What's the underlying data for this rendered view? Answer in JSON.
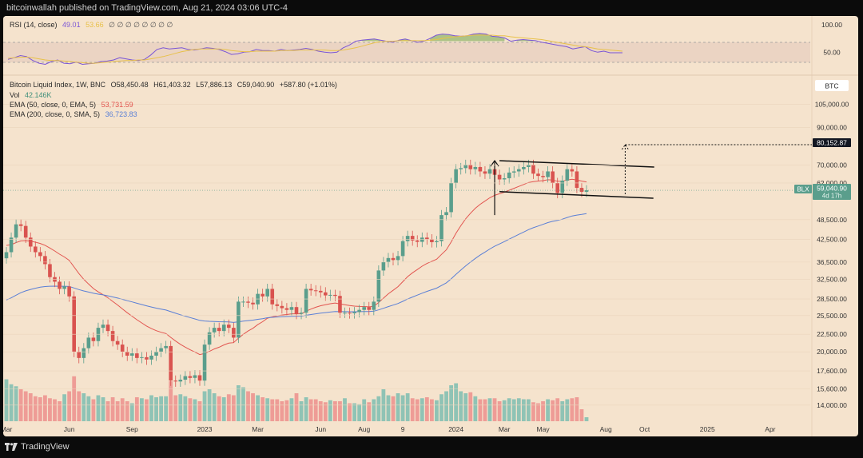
{
  "header": {
    "publish_line": "bitcoinwallah published on TradingView.com, Aug 21, 2024 03:06 UTC-4"
  },
  "rsi_legend": {
    "label": "RSI (14, close)",
    "value": "49.01",
    "value2": "53.66",
    "extras": "∅ ∅ ∅ ∅ ∅ ∅ ∅ ∅"
  },
  "main_legend": {
    "symbol": "Bitcoin Liquid Index, 1W, BNC",
    "open": "O58,450.48",
    "high": "H61,403.32",
    "low": "L57,886.13",
    "close": "C59,040.90",
    "change": "+587.80 (+1.01%)",
    "vol_label": "Vol",
    "vol_value": "42.146K",
    "ema50_label": "EMA (50, close, 0, EMA, 5)",
    "ema50_value": "53,731.59",
    "ema200_label": "EMA (200, close, 0, SMA, 5)",
    "ema200_value": "36,723.83"
  },
  "currency_badge": "BTC",
  "price_labels": {
    "target": "80,152.87",
    "symbol_tag": "BLX",
    "last_price": "59,040.90",
    "countdown": "4d 17h"
  },
  "footer": {
    "brand": "TradingView"
  },
  "colors": {
    "up": "#5a9e8c",
    "down": "#d9534f",
    "vol_up": "#8fc3b5",
    "vol_down": "#ee9c96",
    "ema50": "#e25550",
    "ema200": "#5a7fd6",
    "rsi": "#7a55d6",
    "rsi_ma": "#e8c14a"
  },
  "chart_data": [
    {
      "type": "line",
      "title": "RSI (14, close)",
      "y_ticks": [
        100,
        50
      ],
      "y_tick_labels": [
        "100.00",
        "50.00"
      ],
      "ylim": [
        20,
        110
      ],
      "series": [
        {
          "name": "RSI (14, close)",
          "values": [
            37,
            40,
            44,
            42,
            35,
            30,
            28,
            33,
            36,
            30,
            29,
            32,
            28,
            29,
            30,
            33,
            34,
            36,
            40,
            38,
            36,
            35,
            37,
            45,
            55,
            58,
            56,
            57,
            58,
            55,
            54,
            56,
            58,
            57,
            55,
            51,
            46,
            47,
            50,
            51,
            55,
            53,
            53,
            52,
            55,
            53,
            54,
            55,
            57,
            55,
            52,
            50,
            49,
            50,
            58,
            63,
            70,
            72,
            73,
            74,
            72,
            70,
            68,
            72,
            74,
            71,
            68,
            70,
            75,
            81,
            83,
            82,
            80,
            79,
            80,
            83,
            84,
            83,
            79,
            78,
            76,
            70,
            72,
            73,
            72,
            71,
            68,
            66,
            64,
            62,
            60,
            56,
            58,
            60,
            53,
            50,
            52,
            49,
            49,
            49
          ]
        },
        {
          "name": "RSI MA",
          "values": [
            39,
            40,
            41,
            41,
            40,
            38,
            36,
            35,
            35,
            34,
            33,
            32,
            31,
            30,
            30,
            31,
            32,
            33,
            34,
            35,
            35,
            36,
            36,
            38,
            40,
            42,
            45,
            48,
            51,
            53,
            55,
            56,
            56,
            56,
            56,
            55,
            53,
            52,
            51,
            51,
            52,
            52,
            52,
            52,
            53,
            53,
            53,
            54,
            54,
            54,
            54,
            54,
            53,
            53,
            54,
            56,
            58,
            61,
            64,
            67,
            69,
            70,
            70,
            71,
            71,
            71,
            71,
            71,
            72,
            73,
            75,
            77,
            78,
            79,
            80,
            81,
            81,
            81,
            81,
            80,
            80,
            78,
            77,
            76,
            75,
            74,
            73,
            71,
            69,
            67,
            65,
            63,
            61,
            60,
            58,
            56,
            55,
            54,
            53,
            52
          ]
        }
      ]
    },
    {
      "type": "candlestick",
      "title": "Bitcoin Liquid Index, 1W, BNC",
      "log_scale": true,
      "ylim": [
        12500,
        125000
      ],
      "y_ticks": [
        105000,
        90000,
        70000,
        62000,
        48500,
        42500,
        36500,
        32500,
        28500,
        25500,
        22500,
        20000,
        17600,
        15600,
        14000
      ],
      "y_tick_labels": [
        "105,000.00",
        "90,000.00",
        "70,000.00",
        "62,000.00",
        "48,500.00",
        "42,500.00",
        "36,500.00",
        "32,500.00",
        "28,500.00",
        "25,500.00",
        "22,500.00",
        "20,000.00",
        "17,600.00",
        "15,600.00",
        "14,000.00"
      ],
      "x_labels": [
        "Mar",
        "Jun",
        "Sep",
        "2023",
        "Mar",
        "Jun",
        "Aug",
        "9",
        "2024",
        "Mar",
        "May",
        "Aug",
        "Oct",
        "2025",
        "Apr"
      ],
      "x_label_index": [
        0,
        13,
        26,
        41,
        52,
        65,
        74,
        82,
        93,
        103,
        111,
        124,
        132,
        145,
        158
      ],
      "closes": [
        39000,
        43000,
        47000,
        46500,
        43000,
        40500,
        39000,
        38000,
        36000,
        33000,
        32000,
        30500,
        31000,
        29000,
        20000,
        19200,
        20500,
        22000,
        21500,
        23500,
        24000,
        23000,
        21500,
        21000,
        20000,
        19500,
        19800,
        19200,
        19300,
        19000,
        19500,
        20000,
        20500,
        20800,
        16500,
        16400,
        16600,
        17000,
        16800,
        17100,
        16500,
        21000,
        22800,
        23500,
        23000,
        24000,
        23500,
        22000,
        28000,
        28000,
        27800,
        27500,
        29500,
        29000,
        30500,
        27500,
        27200,
        26800,
        26500,
        27000,
        25800,
        26000,
        30500,
        30200,
        30100,
        29800,
        29200,
        29300,
        29100,
        26000,
        26000,
        25900,
        26100,
        26500,
        27000,
        26500,
        28000,
        34500,
        36500,
        37500,
        37000,
        38000,
        42000,
        43500,
        42200,
        41800,
        43000,
        42500,
        41700,
        42000,
        50000,
        51000,
        62000,
        68000,
        68500,
        70000,
        68000,
        69000,
        67000,
        66000,
        68000,
        65500,
        63500,
        64000,
        66500,
        67000,
        68000,
        69000,
        70000,
        66000,
        65000,
        64500,
        67000,
        62000,
        58000,
        63000,
        68000,
        67000,
        60000,
        58450,
        59040
      ],
      "volumes": [
        42,
        37,
        35,
        32,
        30,
        28,
        25,
        24,
        26,
        23,
        22,
        20,
        27,
        30,
        45,
        30,
        28,
        25,
        22,
        26,
        24,
        20,
        24,
        20,
        23,
        20,
        18,
        24,
        23,
        22,
        26,
        24,
        25,
        25,
        40,
        26,
        27,
        25,
        23,
        22,
        20,
        30,
        32,
        28,
        25,
        24,
        27,
        26,
        36,
        34,
        30,
        28,
        26,
        24,
        23,
        22,
        22,
        20,
        21,
        23,
        28,
        20,
        24,
        22,
        22,
        20,
        19,
        21,
        20,
        20,
        23,
        18,
        18,
        17,
        22,
        19,
        22,
        25,
        32,
        26,
        25,
        28,
        26,
        28,
        23,
        22,
        23,
        24,
        22,
        21,
        27,
        30,
        36,
        38,
        30,
        28,
        29,
        25,
        22,
        22,
        23,
        23,
        20,
        21,
        23,
        22,
        23,
        22,
        22,
        19,
        18,
        20,
        22,
        21,
        23,
        20,
        22,
        23,
        24,
        12,
        4
      ],
      "series": [
        {
          "name": "EMA (50, close, 0, EMA, 5)"
        },
        {
          "name": "EMA (200, close, 0, SMA, 5)"
        }
      ],
      "annotations": {
        "flag_top": [
          [
            72000,
            69000
          ]
        ],
        "flag_bottom": [
          [
            58500,
            56000
          ]
        ],
        "target": 80152.87
      }
    }
  ]
}
